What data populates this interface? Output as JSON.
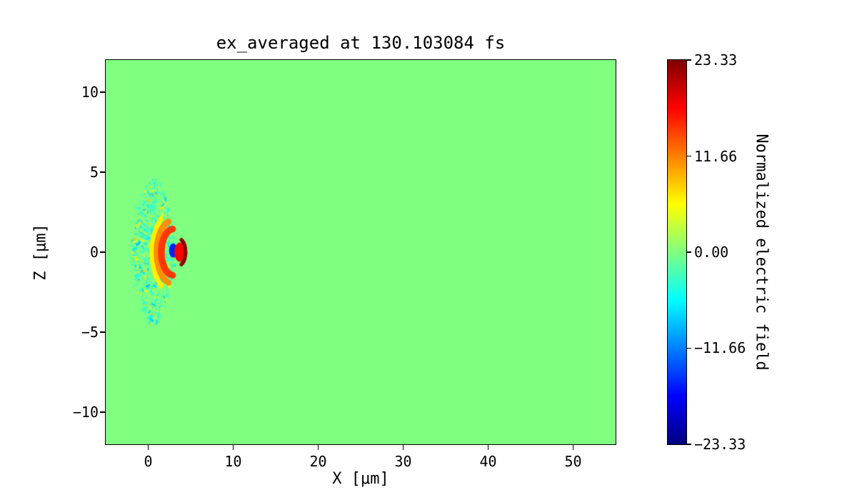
{
  "figure": {
    "background": "#ffffff"
  },
  "chart_data": {
    "type": "heatmap",
    "title": "ex_averaged at 130.103084 fs",
    "xlabel": "X [μm]",
    "ylabel": "Z [μm]",
    "xlim": [
      -5,
      55
    ],
    "ylim": [
      -12,
      12
    ],
    "grid": false,
    "xticks": [
      {
        "v": 0,
        "label": "0"
      },
      {
        "v": 10,
        "label": "10"
      },
      {
        "v": 20,
        "label": "20"
      },
      {
        "v": 30,
        "label": "30"
      },
      {
        "v": 40,
        "label": "40"
      },
      {
        "v": 50,
        "label": "50"
      }
    ],
    "yticks": [
      {
        "v": 10,
        "label": "10"
      },
      {
        "v": 5,
        "label": "5"
      },
      {
        "v": 0,
        "label": "0"
      },
      {
        "v": -5,
        "label": "−5"
      },
      {
        "v": -10,
        "label": "−10"
      }
    ],
    "colorbar": {
      "label": "Normalized electric field",
      "position": "right",
      "vmin": -23.33,
      "vmax": 23.33,
      "ticks": [
        {
          "v": 23.33,
          "label": "23.33"
        },
        {
          "v": 11.66,
          "label": "11.66"
        },
        {
          "v": 0,
          "label": "0.00"
        },
        {
          "v": -11.66,
          "label": "−11.66"
        },
        {
          "v": -23.33,
          "label": "−23.33"
        }
      ],
      "colormap": "jet",
      "colormap_stops": [
        {
          "pos": 0.0,
          "color": "#000080"
        },
        {
          "pos": 0.125,
          "color": "#0000ff"
        },
        {
          "pos": 0.375,
          "color": "#00ffff"
        },
        {
          "pos": 0.625,
          "color": "#ffff00"
        },
        {
          "pos": 0.875,
          "color": "#ff0000"
        },
        {
          "pos": 1.0,
          "color": "#800000"
        }
      ]
    },
    "field": {
      "description": "Laser pulse / wakefield structure near x=0..4 um, z=-4.5..4.5 um on a uniform zero-field (green) background",
      "background_value": 0.0,
      "speckle": {
        "seed": 1337,
        "count": 650,
        "min_x": -1.8,
        "apex_x": 3.1,
        "amplitude": 4.7,
        "envelope_power": 0.7,
        "neg_fraction": 0.62,
        "neg_range": [
          -9,
          -1.5
        ],
        "pos_range": [
          1.5,
          9
        ],
        "max_size_px": 5
      },
      "streaks": {
        "seed": 77,
        "count": 85,
        "value_range": [
          -7.5,
          -2
        ]
      },
      "features": [
        {
          "type": "arc",
          "cx": 3.0,
          "cz": 0,
          "r": 2.55,
          "a0": 125,
          "a1": 235,
          "width": 0.38,
          "value": 6.5
        },
        {
          "type": "arc",
          "cx": 3.0,
          "cz": 0,
          "r": 2.0,
          "a0": 108,
          "a1": 252,
          "width": 0.5,
          "value": 11
        },
        {
          "type": "arc",
          "cx": 3.0,
          "cz": 0,
          "r": 1.45,
          "a0": 95,
          "a1": 265,
          "width": 0.55,
          "value": 15
        },
        {
          "type": "blob",
          "cx": 2.95,
          "cz": 0.1,
          "rx": 0.5,
          "rz": 0.45,
          "value": -16
        },
        {
          "type": "blob",
          "cx": 3.75,
          "cz": 0,
          "rx": 0.68,
          "rz": 0.6,
          "value": 17.8
        },
        {
          "type": "arc",
          "cx": 3.55,
          "cz": 0,
          "r": 0.85,
          "a0": -65,
          "a1": 65,
          "width": 0.3,
          "value": 22.8
        }
      ]
    }
  }
}
